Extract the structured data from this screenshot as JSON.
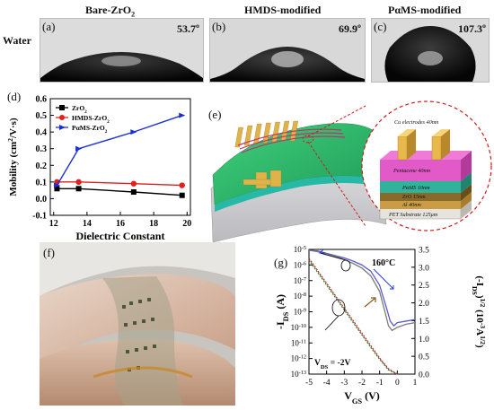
{
  "panel_a": {
    "header": "Bare-ZrO",
    "header_sub": "2",
    "label": "(a)",
    "angle": "53.7º",
    "row_label": "Water"
  },
  "panel_b": {
    "header": "HMDS-modified",
    "label": "(b)",
    "angle": "69.9º"
  },
  "panel_c": {
    "header": "PαMS-modified",
    "label": "(c)",
    "angle": "107.3º"
  },
  "panel_d": {
    "label": "(d)"
  },
  "panel_e": {
    "label": "(e)",
    "layers": [
      {
        "text": "Cu electrodes 40nm"
      },
      {
        "text": "Pentacene 40nm"
      },
      {
        "text": "PαMS 10nm"
      },
      {
        "text": "ZrO 15nm"
      },
      {
        "text": "Al 40nm"
      },
      {
        "text": "PET Substrate 125μm"
      }
    ],
    "colors": {
      "cu": "#e8b84a",
      "pentacene": "#e25ac8",
      "pams": "#30b39a",
      "zro": "#8a6a2a",
      "al": "#cfa04a",
      "pet": "#d9d6d0"
    }
  },
  "panel_f": {
    "label": "(f)"
  },
  "panel_g": {
    "label": "(g)",
    "temperature": "160°C",
    "vds": "V",
    "vds_sub": "DS",
    "vds_value": " = -2V"
  },
  "chart_data": [
    {
      "type": "line",
      "x_ticks": [
        12,
        14,
        16,
        18,
        20
      ],
      "xlim": [
        11.8,
        20.2
      ],
      "ylim": [
        -0.1,
        0.6
      ],
      "y_ticks": [
        -0.1,
        0.0,
        0.1,
        0.2,
        0.3,
        0.4,
        0.5,
        0.6
      ],
      "xlabel": "Dielectric Constant",
      "ylabel": "Mobility (cm",
      "ylabel_sup": "2",
      "ylabel_tail": "/V·s)",
      "series": [
        {
          "name": "ZrO",
          "name_sub": "2",
          "color": "#000000",
          "marker": "square",
          "x": [
            12.2,
            13.5,
            16.8,
            19.7
          ],
          "values": [
            0.06,
            0.06,
            0.04,
            0.02
          ]
        },
        {
          "name": "HMDS-ZrO",
          "name_sub": "2",
          "color": "#e0201c",
          "marker": "circle",
          "x": [
            12.2,
            13.5,
            16.8,
            19.7
          ],
          "values": [
            0.1,
            0.1,
            0.09,
            0.08
          ]
        },
        {
          "name": "PαMS-ZrO",
          "name_sub": "2",
          "color": "#1a2fd6",
          "marker": "triangle",
          "x": [
            12.2,
            13.5,
            16.8,
            19.7
          ],
          "values": [
            0.08,
            0.3,
            0.4,
            0.5
          ]
        }
      ]
    },
    {
      "type": "line",
      "xlabel": "V",
      "xlabel_sub": "GS",
      "xlabel_tail": " (V)",
      "ylabel": "-I",
      "ylabel_sub": "DS",
      "ylabel_tail": " (A)",
      "y2label": "(-I",
      "y2label_sub": "DS",
      "y2label_mid": ")",
      "y2label_sup": "1/2",
      "y2label_tail": " (10",
      "y2label_sup2": "-3",
      "y2label_tail2": "A",
      "y2label_sup3": "1/2",
      "y2label_end": ")",
      "x_ticks": [
        -5,
        -4,
        -3,
        -2,
        -1,
        0,
        1
      ],
      "xlim": [
        -5,
        1
      ],
      "y_log_ticks": [
        -13,
        -12,
        -11,
        -10,
        -9,
        -8,
        -7,
        -6,
        -5
      ],
      "y_log_tick_base": "10",
      "ylim_log": [
        -13,
        -5
      ],
      "y2_ticks": [
        0.0,
        0.5,
        1.0,
        1.5,
        2.0,
        2.5,
        3.0,
        3.5
      ],
      "y2lim": [
        0,
        3.5
      ],
      "series": [
        {
          "name": "log-fwd",
          "axis": "left",
          "color": "#5a5ad0",
          "x": [
            -5,
            -4.5,
            -4,
            -3.5,
            -3,
            -2.5,
            -2,
            -1.5,
            -1,
            -0.6,
            -0.4,
            -0.2,
            0,
            0.5,
            1
          ],
          "values": [
            -5.05,
            -5.1,
            -5.25,
            -5.4,
            -5.55,
            -5.75,
            -6.0,
            -6.4,
            -7.3,
            -8.8,
            -9.6,
            -9.9,
            -9.7,
            -9.6,
            -9.5
          ]
        },
        {
          "name": "log-rev",
          "axis": "left",
          "color": "#7a7a7a",
          "x": [
            -5,
            -4.5,
            -4,
            -3.5,
            -3,
            -2.5,
            -2,
            -1.5,
            -1,
            -0.7,
            -0.5,
            -0.3,
            0,
            0.5,
            1
          ],
          "values": [
            -5.05,
            -5.15,
            -5.3,
            -5.45,
            -5.65,
            -5.9,
            -6.2,
            -6.7,
            -7.7,
            -9.0,
            -9.9,
            -10.2,
            -10.0,
            -9.8,
            -9.7
          ]
        },
        {
          "name": "sqrt-fwd",
          "axis": "right",
          "color": "#2a7a2a",
          "x": [
            -5,
            -4.5,
            -4,
            -3.5,
            -3,
            -2.5,
            -2,
            -1.5,
            -1,
            -0.5,
            0
          ],
          "values": [
            3.2,
            2.85,
            2.5,
            2.15,
            1.8,
            1.45,
            1.1,
            0.75,
            0.42,
            0.12,
            0.0
          ]
        },
        {
          "name": "sqrt-rev",
          "axis": "right",
          "color": "#c03030",
          "x": [
            -5,
            -4.5,
            -4,
            -3.5,
            -3,
            -2.5,
            -2,
            -1.5,
            -1,
            -0.5,
            0
          ],
          "values": [
            3.25,
            2.9,
            2.55,
            2.2,
            1.85,
            1.5,
            1.15,
            0.8,
            0.45,
            0.15,
            0.0
          ]
        }
      ]
    }
  ]
}
